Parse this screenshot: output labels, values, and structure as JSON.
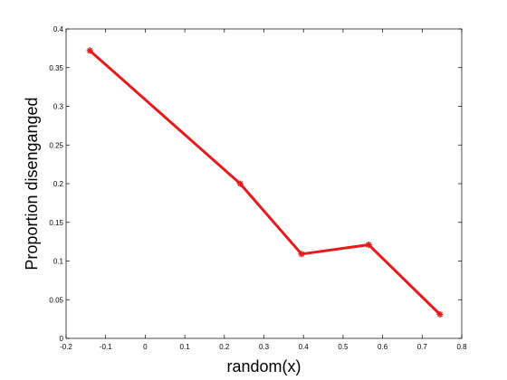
{
  "chart_data": {
    "type": "line",
    "title": "",
    "xlabel": "random(x)",
    "ylabel": "Proportion disenganged",
    "xlim": [
      -0.2,
      0.8
    ],
    "ylim": [
      0,
      0.4
    ],
    "xticks": [
      -0.2,
      -0.1,
      0,
      0.1,
      0.2,
      0.3,
      0.4,
      0.5,
      0.6,
      0.7,
      0.8
    ],
    "xtick_labels": [
      "-0.2",
      "-0.1",
      "0",
      "0.1",
      "0.2",
      "0.3",
      "0.4",
      "0.5",
      "0.6",
      "0.7",
      "0.8"
    ],
    "yticks": [
      0,
      0.05,
      0.1,
      0.15,
      0.2,
      0.25,
      0.3,
      0.35,
      0.4
    ],
    "ytick_labels": [
      "0",
      "0.05",
      "0.1",
      "0.15",
      "0.2",
      "0.25",
      "0.3",
      "0.35",
      "0.4"
    ],
    "grid": false,
    "series": [
      {
        "color": "#e41a1c",
        "marker": "asterisk",
        "x": [
          -0.14,
          0.24,
          0.395,
          0.565,
          0.745
        ],
        "y": [
          0.372,
          0.2,
          0.109,
          0.121,
          0.031
        ]
      }
    ]
  }
}
